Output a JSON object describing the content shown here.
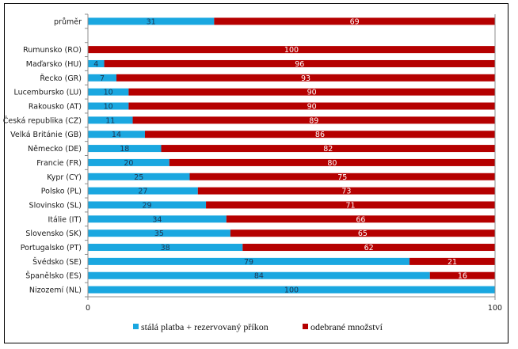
{
  "chart_data": {
    "type": "bar",
    "orientation": "horizontal",
    "stacked": true,
    "title": "",
    "xlabel": "",
    "ylabel": "",
    "xlim": [
      0,
      100
    ],
    "x_ticks": [
      "0",
      "100"
    ],
    "grid": false,
    "legend_position": "bottom",
    "categories": [
      "průměr",
      "",
      "Rumunsko (RO)",
      "Maďarsko (HU)",
      "Řecko (GR)",
      "Lucembursko (LU)",
      "Rakousko (AT)",
      "Česká republika (CZ)",
      "Velká Británie (GB)",
      "Německo (DE)",
      "Francie (FR)",
      "Kypr (CY)",
      "Polsko (PL)",
      "Slovinsko (SL)",
      "Itálie (IT)",
      "Slovensko (SK)",
      "Portugalsko (PT)",
      "Švédsko (SE)",
      "Španělsko (ES)",
      "Nizozemí (NL)"
    ],
    "series": [
      {
        "name": "stálá platba + rezervovaný příkon",
        "color": "#1aa7e0",
        "values": [
          31,
          null,
          0,
          4,
          7,
          10,
          10,
          11,
          14,
          18,
          20,
          25,
          27,
          29,
          34,
          35,
          38,
          79,
          84,
          100
        ]
      },
      {
        "name": "odebrané množství",
        "color": "#b50000",
        "values": [
          69,
          null,
          100,
          96,
          93,
          90,
          90,
          89,
          86,
          82,
          80,
          75,
          73,
          71,
          66,
          65,
          62,
          21,
          16,
          0
        ]
      }
    ]
  }
}
